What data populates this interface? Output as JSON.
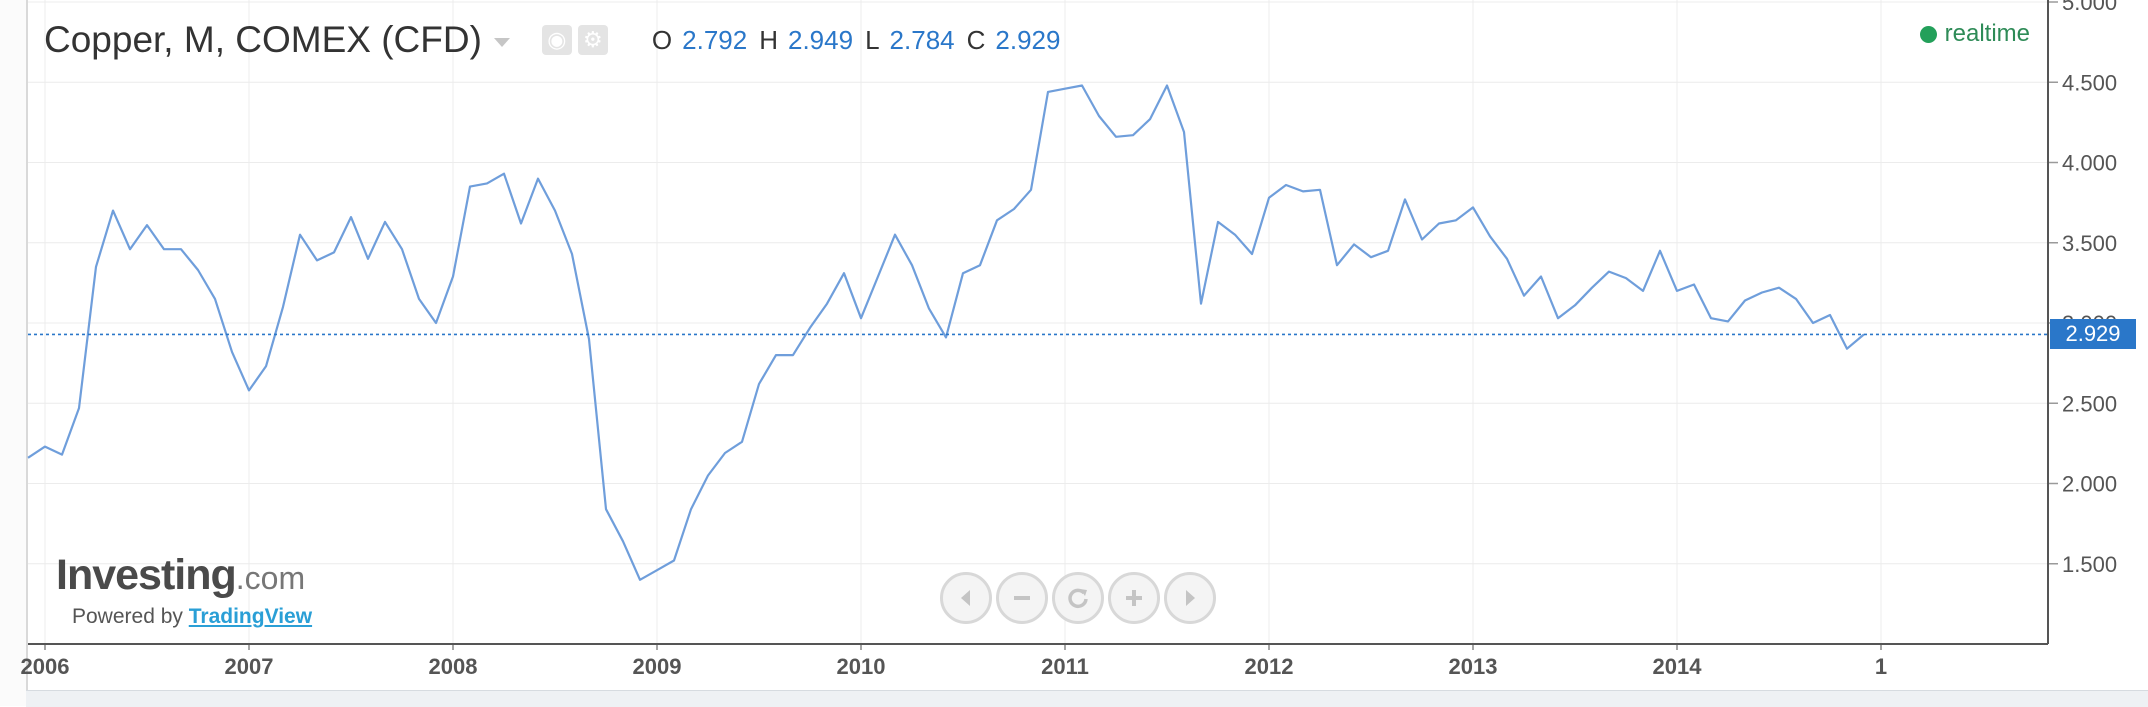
{
  "header": {
    "title": "Copper, M, COMEX (CFD)",
    "ohlc": [
      {
        "key": "O",
        "value": "2.792"
      },
      {
        "key": "H",
        "value": "2.949"
      },
      {
        "key": "L",
        "value": "2.784"
      },
      {
        "key": "C",
        "value": "2.929"
      }
    ],
    "tools": [
      {
        "icon": "eye-icon"
      },
      {
        "icon": "gear-icon"
      }
    ]
  },
  "status": {
    "label": "realtime",
    "color": "#23a05a"
  },
  "branding": {
    "logo_main": "Investing",
    "logo_suffix": ".com",
    "powered_prefix": "Powered by",
    "powered_link": "TradingView"
  },
  "navigation": [
    "scroll-left-icon",
    "zoom-out-icon",
    "reset-icon",
    "zoom-in-icon",
    "scroll-right-icon"
  ],
  "chart_data": {
    "type": "line",
    "title": "Copper, M, COMEX (CFD)",
    "interval": "monthly",
    "x_start": "2005-12",
    "ylim": [
      1.0,
      5.0
    ],
    "y_ticks": [
      "1.500",
      "2.000",
      "2.500",
      "3.000",
      "3.500",
      "4.000",
      "4.500",
      "5.000"
    ],
    "x_ticks": [
      {
        "label": "2006",
        "month": "2006-01"
      },
      {
        "label": "2007",
        "month": "2007-01"
      },
      {
        "label": "2008",
        "month": "2008-01"
      },
      {
        "label": "2009",
        "month": "2009-01"
      },
      {
        "label": "2010",
        "month": "2010-01"
      },
      {
        "label": "2011",
        "month": "2011-01"
      },
      {
        "label": "2012",
        "month": "2012-01"
      },
      {
        "label": "2013",
        "month": "2013-01"
      },
      {
        "label": "2014",
        "month": "2014-01"
      },
      {
        "label": "1",
        "month": "2015-01"
      }
    ],
    "last_value": 2.929,
    "last_value_label": "2.929",
    "grid": true,
    "color": "#6f9edb",
    "series": [
      {
        "values": [
          2.16,
          2.23,
          2.18,
          2.47,
          3.35,
          3.7,
          3.46,
          3.61,
          3.46,
          3.46,
          3.33,
          3.15,
          2.82,
          2.58,
          2.73,
          3.1,
          3.55,
          3.39,
          3.44,
          3.66,
          3.4,
          3.63,
          3.46,
          3.15,
          3.0,
          3.29,
          3.85,
          3.87,
          3.93,
          3.62,
          3.9,
          3.7,
          3.43,
          2.9,
          1.84,
          1.64,
          1.4,
          1.46,
          1.52,
          1.84,
          2.05,
          2.19,
          2.26,
          2.62,
          2.8,
          2.8,
          2.97,
          3.12,
          3.31,
          3.03,
          3.29,
          3.55,
          3.36,
          3.09,
          2.91,
          3.31,
          3.36,
          3.64,
          3.71,
          3.83,
          4.44,
          4.46,
          4.48,
          4.29,
          4.16,
          4.17,
          4.27,
          4.48,
          4.19,
          3.12,
          3.63,
          3.55,
          3.43,
          3.78,
          3.86,
          3.82,
          3.83,
          3.36,
          3.49,
          3.41,
          3.45,
          3.77,
          3.52,
          3.62,
          3.64,
          3.72,
          3.54,
          3.4,
          3.17,
          3.29,
          3.03,
          3.11,
          3.22,
          3.32,
          3.28,
          3.2,
          3.45,
          3.2,
          3.24,
          3.03,
          3.01,
          3.14,
          3.19,
          3.22,
          3.15,
          3.0,
          3.05,
          2.84,
          2.929
        ]
      }
    ]
  }
}
